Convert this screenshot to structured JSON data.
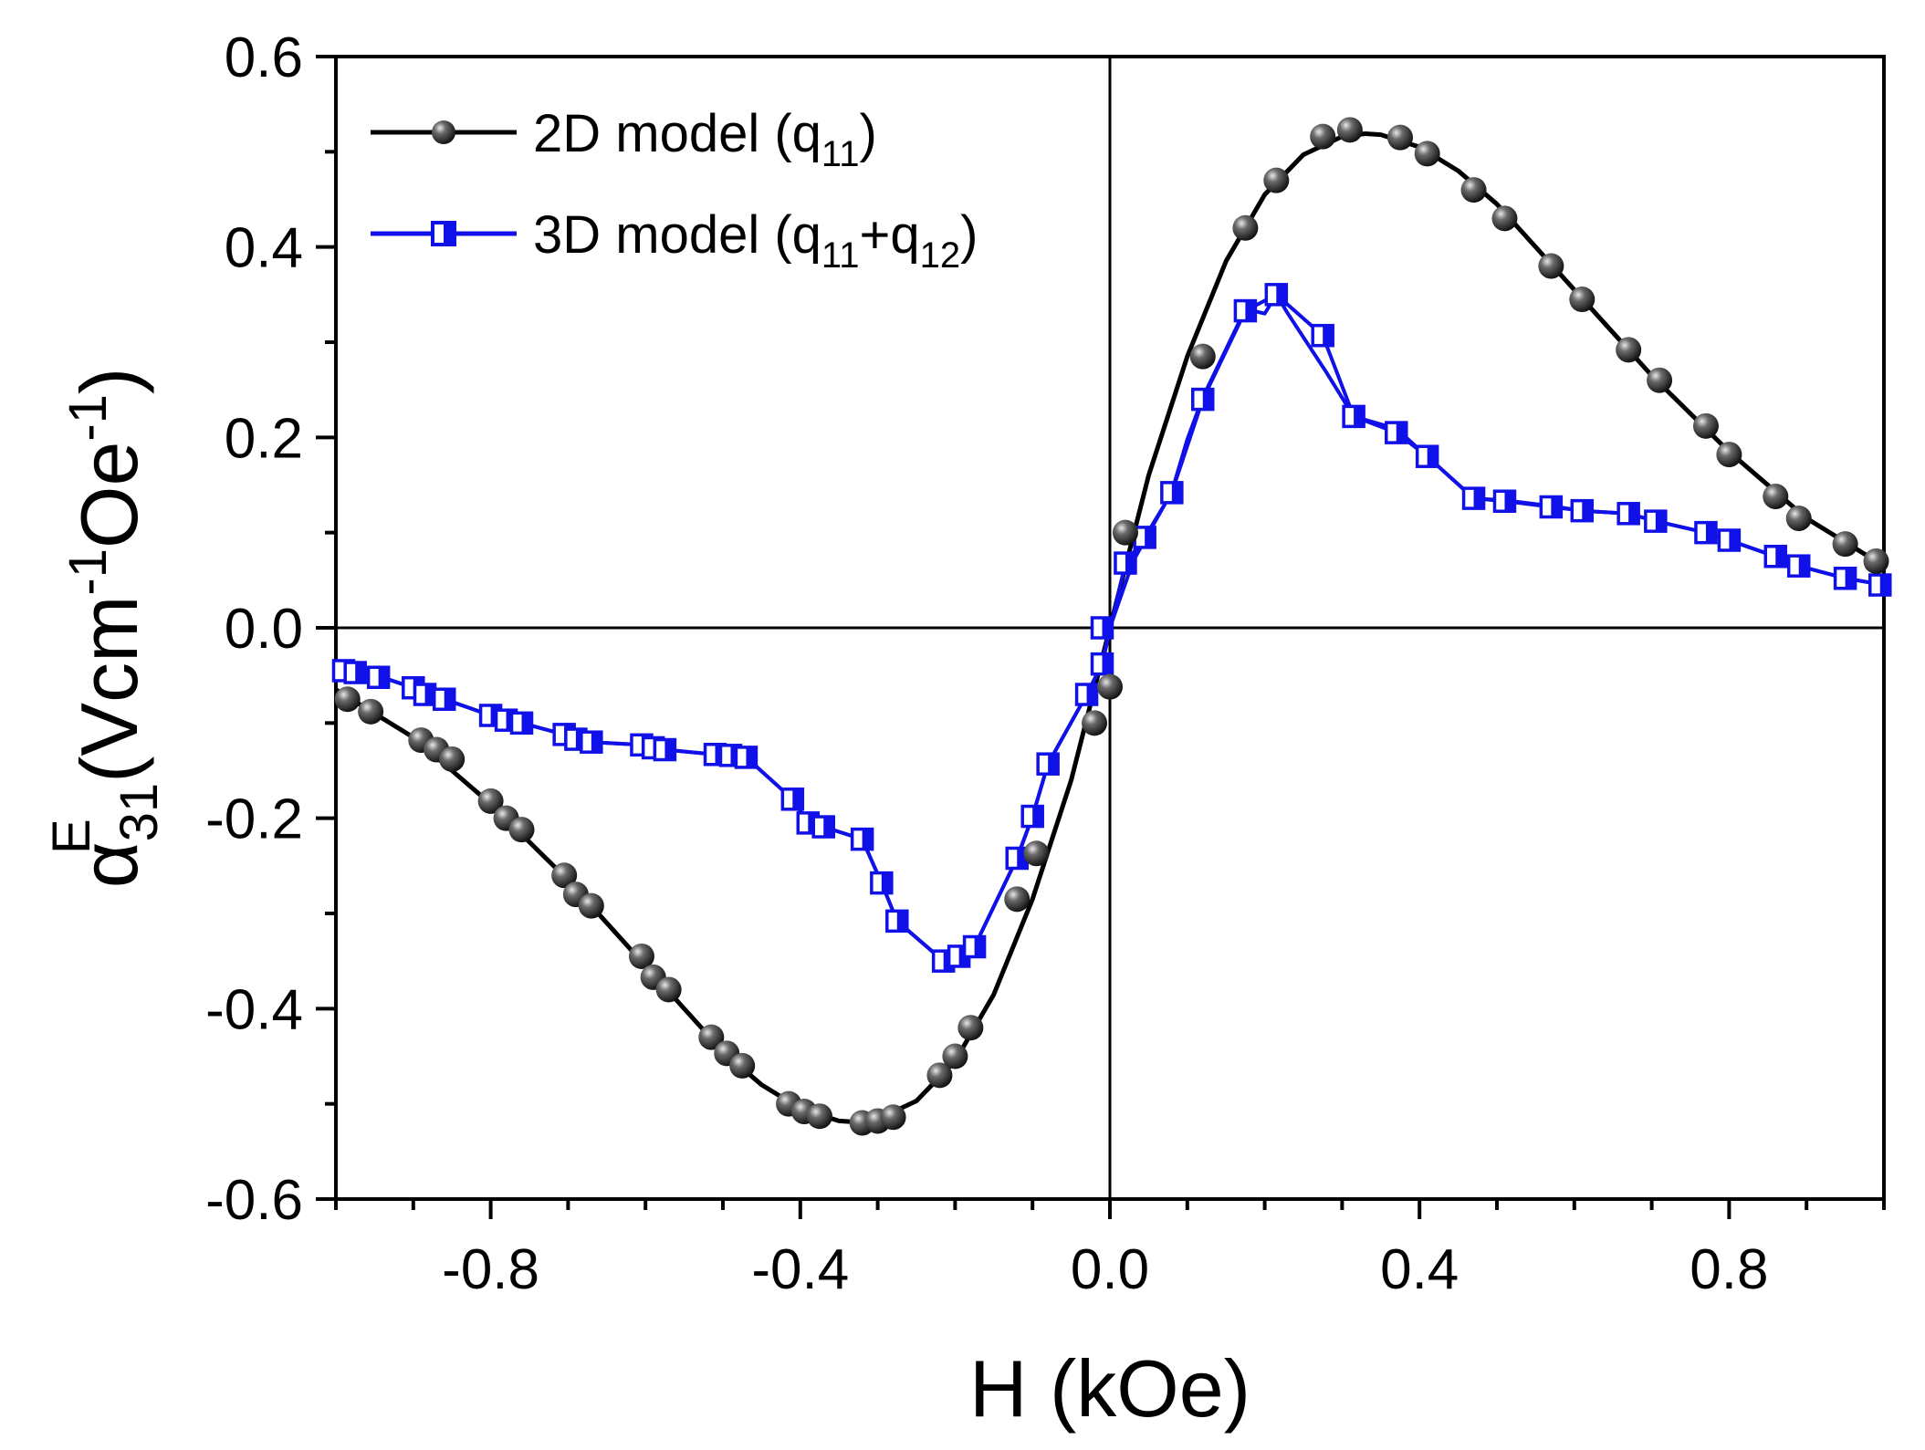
{
  "chart_data": {
    "type": "line",
    "xlabel": "H (kOe)",
    "ylabel_parts": {
      "base": "α",
      "superscript": "E",
      "subscript": "31",
      "unit_open": "(Vcm",
      "unit_exp1": "-1",
      "unit_mid": "Oe",
      "unit_exp2": "-1",
      "unit_close": ")"
    },
    "xlim": [
      -1.0,
      1.0
    ],
    "ylim": [
      -0.6,
      0.6
    ],
    "xticks": [
      -0.8,
      -0.4,
      0.0,
      0.4,
      0.8
    ],
    "xtick_labels": [
      "-0.8",
      "-0.4",
      "0.0",
      "0.4",
      "0.8"
    ],
    "yticks": [
      -0.6,
      -0.4,
      -0.2,
      0.0,
      0.2,
      0.4,
      0.6
    ],
    "ytick_labels": [
      "-0.6",
      "-0.4",
      "-0.2",
      "0.0",
      "0.2",
      "0.4",
      "0.6"
    ],
    "zero_lines": true,
    "legend_position": "top-left",
    "series": [
      {
        "name": "2D model (q11)",
        "legend_text": "2D model (q",
        "legend_sub1": "11",
        "legend_tail": ")",
        "color": "#000000",
        "marker": "sphere",
        "curve": [
          [
            -1.0,
            -0.065
          ],
          [
            -0.9,
            -0.115
          ],
          [
            -0.8,
            -0.185
          ],
          [
            -0.7,
            -0.265
          ],
          [
            -0.6,
            -0.355
          ],
          [
            -0.5,
            -0.445
          ],
          [
            -0.45,
            -0.48
          ],
          [
            -0.4,
            -0.505
          ],
          [
            -0.35,
            -0.518
          ],
          [
            -0.33,
            -0.519
          ],
          [
            -0.3,
            -0.516
          ],
          [
            -0.25,
            -0.497
          ],
          [
            -0.2,
            -0.455
          ],
          [
            -0.15,
            -0.385
          ],
          [
            -0.1,
            -0.285
          ],
          [
            -0.05,
            -0.16
          ],
          [
            0.0,
            0.0
          ],
          [
            0.05,
            0.16
          ],
          [
            0.1,
            0.285
          ],
          [
            0.15,
            0.385
          ],
          [
            0.2,
            0.455
          ],
          [
            0.25,
            0.497
          ],
          [
            0.3,
            0.516
          ],
          [
            0.33,
            0.519
          ],
          [
            0.35,
            0.518
          ],
          [
            0.4,
            0.505
          ],
          [
            0.45,
            0.48
          ],
          [
            0.5,
            0.445
          ],
          [
            0.6,
            0.355
          ],
          [
            0.7,
            0.265
          ],
          [
            0.8,
            0.185
          ],
          [
            0.9,
            0.115
          ],
          [
            1.0,
            0.065
          ]
        ],
        "points": [
          [
            -0.985,
            -0.075
          ],
          [
            -0.955,
            -0.088
          ],
          [
            -0.89,
            -0.118
          ],
          [
            -0.87,
            -0.128
          ],
          [
            -0.85,
            -0.138
          ],
          [
            -0.8,
            -0.182
          ],
          [
            -0.78,
            -0.2
          ],
          [
            -0.76,
            -0.212
          ],
          [
            -0.705,
            -0.26
          ],
          [
            -0.69,
            -0.28
          ],
          [
            -0.67,
            -0.292
          ],
          [
            -0.605,
            -0.345
          ],
          [
            -0.59,
            -0.367
          ],
          [
            -0.57,
            -0.38
          ],
          [
            -0.515,
            -0.43
          ],
          [
            -0.495,
            -0.447
          ],
          [
            -0.475,
            -0.46
          ],
          [
            -0.415,
            -0.5
          ],
          [
            -0.395,
            -0.508
          ],
          [
            -0.375,
            -0.513
          ],
          [
            -0.32,
            -0.52
          ],
          [
            -0.3,
            -0.518
          ],
          [
            -0.28,
            -0.514
          ],
          [
            -0.22,
            -0.47
          ],
          [
            -0.2,
            -0.45
          ],
          [
            -0.18,
            -0.42
          ],
          [
            -0.12,
            -0.285
          ],
          [
            -0.095,
            -0.237
          ],
          [
            -0.02,
            -0.1
          ],
          [
            0.0,
            -0.062
          ],
          [
            0.02,
            0.1
          ],
          [
            0.12,
            0.285
          ],
          [
            0.175,
            0.42
          ],
          [
            0.215,
            0.47
          ],
          [
            0.275,
            0.516
          ],
          [
            0.31,
            0.523
          ],
          [
            0.375,
            0.515
          ],
          [
            0.41,
            0.498
          ],
          [
            0.47,
            0.46
          ],
          [
            0.51,
            0.43
          ],
          [
            0.57,
            0.38
          ],
          [
            0.61,
            0.345
          ],
          [
            0.67,
            0.292
          ],
          [
            0.71,
            0.26
          ],
          [
            0.77,
            0.212
          ],
          [
            0.8,
            0.182
          ],
          [
            0.86,
            0.138
          ],
          [
            0.89,
            0.115
          ],
          [
            0.95,
            0.088
          ],
          [
            0.99,
            0.07
          ]
        ]
      },
      {
        "name": "3D model (q11+q12)",
        "legend_text": "3D model (q",
        "legend_sub1": "11",
        "legend_plus": "+q",
        "legend_sub2": "12",
        "legend_tail": ")",
        "color": "#1010e8",
        "marker": "half-filled-square",
        "branches": [
          [
            [
              -1.0,
              -0.045
            ],
            [
              -0.97,
              -0.048
            ],
            [
              -0.94,
              -0.052
            ],
            [
              -0.9,
              -0.063
            ],
            [
              -0.885,
              -0.07
            ],
            [
              -0.86,
              -0.075
            ],
            [
              -0.8,
              -0.092
            ],
            [
              -0.78,
              -0.097
            ],
            [
              -0.76,
              -0.1
            ],
            [
              -0.705,
              -0.112
            ],
            [
              -0.69,
              -0.117
            ],
            [
              -0.67,
              -0.12
            ],
            [
              -0.605,
              -0.123
            ],
            [
              -0.59,
              -0.126
            ],
            [
              -0.575,
              -0.128
            ],
            [
              -0.51,
              -0.133
            ],
            [
              -0.49,
              -0.134
            ],
            [
              -0.47,
              -0.136
            ],
            [
              -0.41,
              -0.18
            ],
            [
              -0.39,
              -0.205
            ],
            [
              -0.37,
              -0.209
            ],
            [
              -0.32,
              -0.222
            ],
            [
              -0.295,
              -0.268
            ],
            [
              -0.275,
              -0.308
            ],
            [
              -0.215,
              -0.35
            ],
            [
              -0.195,
              -0.345
            ],
            [
              -0.175,
              -0.335
            ],
            [
              -0.12,
              -0.242
            ],
            [
              -0.1,
              -0.198
            ],
            [
              -0.08,
              -0.143
            ],
            [
              -0.03,
              -0.07
            ],
            [
              -0.01,
              -0.038
            ],
            [
              0.02,
              0.068
            ],
            [
              0.045,
              0.095
            ],
            [
              0.08,
              0.142
            ],
            [
              0.12,
              0.24
            ],
            [
              0.175,
              0.333
            ],
            [
              0.215,
              0.35
            ],
            [
              0.275,
              0.307
            ],
            [
              0.315,
              0.222
            ],
            [
              0.37,
              0.205
            ],
            [
              0.41,
              0.18
            ],
            [
              0.47,
              0.136
            ],
            [
              0.51,
              0.133
            ],
            [
              0.57,
              0.127
            ],
            [
              0.61,
              0.123
            ],
            [
              0.67,
              0.12
            ],
            [
              0.705,
              0.112
            ],
            [
              0.77,
              0.1
            ],
            [
              0.8,
              0.092
            ],
            [
              0.86,
              0.075
            ],
            [
              0.89,
              0.065
            ],
            [
              0.95,
              0.052
            ],
            [
              1.0,
              0.045
            ]
          ],
          [
            [
              -1.0,
              -0.045
            ],
            [
              -0.97,
              -0.048
            ],
            [
              -0.94,
              -0.052
            ],
            [
              -0.9,
              -0.063
            ],
            [
              -0.885,
              -0.07
            ],
            [
              -0.86,
              -0.075
            ],
            [
              -0.8,
              -0.092
            ],
            [
              -0.78,
              -0.097
            ],
            [
              -0.76,
              -0.1
            ],
            [
              -0.705,
              -0.112
            ],
            [
              -0.69,
              -0.117
            ],
            [
              -0.67,
              -0.12
            ],
            [
              -0.605,
              -0.123
            ],
            [
              -0.59,
              -0.126
            ],
            [
              -0.575,
              -0.128
            ],
            [
              -0.51,
              -0.133
            ],
            [
              -0.49,
              -0.134
            ],
            [
              -0.47,
              -0.136
            ],
            [
              -0.41,
              -0.18
            ],
            [
              -0.39,
              -0.205
            ],
            [
              -0.37,
              -0.209
            ],
            [
              -0.32,
              -0.222
            ],
            [
              -0.295,
              -0.268
            ],
            [
              -0.275,
              -0.308
            ],
            [
              -0.215,
              -0.35
            ],
            [
              -0.195,
              -0.345
            ],
            [
              -0.175,
              -0.335
            ],
            [
              -0.12,
              -0.242
            ],
            [
              -0.1,
              -0.198
            ],
            [
              -0.08,
              -0.143
            ],
            [
              -0.03,
              -0.07
            ],
            [
              -0.01,
              -0.038
            ],
            [
              0.0,
              0.0
            ],
            [
              0.03,
              0.07
            ],
            [
              0.08,
              0.143
            ],
            [
              0.1,
              0.198
            ],
            [
              0.12,
              0.242
            ],
            [
              0.175,
              0.335
            ],
            [
              0.2,
              0.33
            ],
            [
              0.215,
              0.35
            ],
            [
              0.23,
              0.33
            ],
            [
              0.28,
              0.268
            ],
            [
              0.315,
              0.222
            ],
            [
              0.37,
              0.209
            ],
            [
              0.41,
              0.18
            ],
            [
              0.47,
              0.136
            ],
            [
              0.51,
              0.134
            ],
            [
              0.57,
              0.128
            ],
            [
              0.61,
              0.123
            ],
            [
              0.67,
              0.12
            ],
            [
              0.705,
              0.112
            ],
            [
              0.77,
              0.1
            ],
            [
              0.8,
              0.092
            ],
            [
              0.86,
              0.075
            ],
            [
              0.89,
              0.065
            ],
            [
              0.95,
              0.052
            ],
            [
              1.0,
              0.045
            ]
          ]
        ],
        "points": [
          [
            -0.99,
            -0.045
          ],
          [
            -0.975,
            -0.047
          ],
          [
            -0.945,
            -0.052
          ],
          [
            -0.9,
            -0.063
          ],
          [
            -0.885,
            -0.07
          ],
          [
            -0.86,
            -0.075
          ],
          [
            -0.8,
            -0.092
          ],
          [
            -0.78,
            -0.097
          ],
          [
            -0.76,
            -0.1
          ],
          [
            -0.705,
            -0.112
          ],
          [
            -0.69,
            -0.117
          ],
          [
            -0.67,
            -0.12
          ],
          [
            -0.605,
            -0.123
          ],
          [
            -0.59,
            -0.126
          ],
          [
            -0.575,
            -0.128
          ],
          [
            -0.51,
            -0.133
          ],
          [
            -0.49,
            -0.134
          ],
          [
            -0.47,
            -0.136
          ],
          [
            -0.41,
            -0.18
          ],
          [
            -0.39,
            -0.205
          ],
          [
            -0.37,
            -0.209
          ],
          [
            -0.32,
            -0.222
          ],
          [
            -0.295,
            -0.268
          ],
          [
            -0.275,
            -0.308
          ],
          [
            -0.215,
            -0.35
          ],
          [
            -0.195,
            -0.345
          ],
          [
            -0.175,
            -0.335
          ],
          [
            -0.12,
            -0.242
          ],
          [
            -0.1,
            -0.198
          ],
          [
            -0.08,
            -0.143
          ],
          [
            -0.03,
            -0.07
          ],
          [
            -0.01,
            -0.038
          ],
          [
            -0.01,
            0.0
          ],
          [
            0.02,
            0.068
          ],
          [
            0.045,
            0.095
          ],
          [
            0.08,
            0.142
          ],
          [
            0.12,
            0.24
          ],
          [
            0.175,
            0.333
          ],
          [
            0.215,
            0.35
          ],
          [
            0.275,
            0.307
          ],
          [
            0.315,
            0.222
          ],
          [
            0.37,
            0.205
          ],
          [
            0.41,
            0.18
          ],
          [
            0.47,
            0.136
          ],
          [
            0.51,
            0.133
          ],
          [
            0.57,
            0.127
          ],
          [
            0.61,
            0.123
          ],
          [
            0.67,
            0.12
          ],
          [
            0.705,
            0.112
          ],
          [
            0.77,
            0.1
          ],
          [
            0.8,
            0.092
          ],
          [
            0.86,
            0.075
          ],
          [
            0.89,
            0.065
          ],
          [
            0.95,
            0.052
          ],
          [
            0.995,
            0.045
          ]
        ]
      }
    ]
  }
}
